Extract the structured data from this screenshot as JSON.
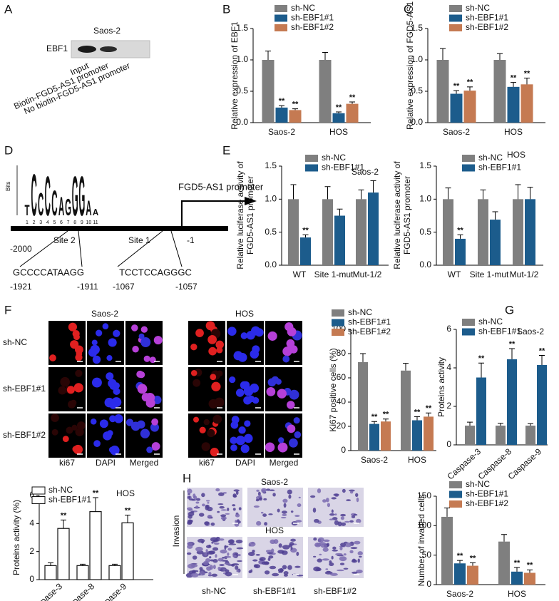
{
  "panel_labels": [
    "A",
    "B",
    "C",
    "D",
    "E",
    "F",
    "G",
    "H"
  ],
  "western_blot": {
    "cell_line": "Saos-2",
    "band_label": "EBF1",
    "lanes": [
      "Input",
      "Biotin-FGD5-AS1 promoter",
      "No biotin-FGD5-AS1 promoter"
    ]
  },
  "motif": {
    "axis_label": "Bits",
    "logo": [
      {
        "letter": "T",
        "bits": 0.5
      },
      {
        "letter": "C",
        "bits": 2.0
      },
      {
        "letter": "C",
        "bits": 1.1
      },
      {
        "letter": "C",
        "bits": 1.9
      },
      {
        "letter": "C",
        "bits": 1.2
      },
      {
        "letter": "A",
        "bits": 0.9
      },
      {
        "letter": "G",
        "bits": 0.8
      },
      {
        "letter": "G",
        "bits": 1.9
      },
      {
        "letter": "G",
        "bits": 1.9
      },
      {
        "letter": "A",
        "bits": 0.7
      },
      {
        "letter": "A",
        "bits": 0.3
      }
    ],
    "colors": {
      "A": "#2e9e3e",
      "C": "#1f5fae",
      "G": "#f2a20c",
      "T": "#d42a2a"
    },
    "positions": [
      1,
      2,
      3,
      4,
      5,
      6,
      7,
      8,
      9,
      10,
      11
    ]
  },
  "promoter_diagram": {
    "promoter_label": "FGD5-AS1 promoter",
    "site_2": "Site 2",
    "site_1": "Site 1",
    "start": "-2000",
    "end": "-1",
    "site2_seq": "GCCCCATAAGG",
    "site2_from": "-1921",
    "site2_to": "-1911",
    "site1_seq": "TCCTCCAGGGC",
    "site1_from": "-1067",
    "site1_to": "-1057"
  },
  "ki67_images": {
    "cell_lines": [
      "Saos-2",
      "HOS"
    ],
    "rows": [
      "sh-NC",
      "sh-EBF1#1",
      "sh-EBF1#2"
    ],
    "columns": [
      "ki67",
      "DAPI",
      "Merged"
    ]
  },
  "invasion_images": {
    "cell_lines": [
      "Saos-2",
      "HOS"
    ],
    "side_label": "Invasion",
    "columns": [
      "sh-NC",
      "sh-EBF1#1",
      "sh-EBF1#2"
    ]
  },
  "chart_data": [
    {
      "type": "bar",
      "ylabel": "Relative expression of EBF1",
      "categories": [
        "Saos-2",
        "HOS"
      ],
      "ylim": [
        0,
        1.5
      ],
      "yticks": [
        {
          "value": 0,
          "label": "0.0"
        },
        0.5,
        {
          "value": 1,
          "label": "1.0"
        },
        1.5
      ],
      "series": [
        {
          "name": "sh-NC",
          "color": "#7f7f7f",
          "values": [
            1.0,
            1.0
          ],
          "errors": [
            0.14,
            0.12
          ]
        },
        {
          "name": "sh-EBF1#1",
          "color": "#1c5c8c",
          "values": [
            0.24,
            0.15
          ],
          "errors": [
            0.03,
            0.02
          ],
          "significance": [
            "**",
            "**"
          ]
        },
        {
          "name": "sh-EBF1#2",
          "color": "#c57a52",
          "values": [
            0.2,
            0.3
          ],
          "errors": [
            0.02,
            0.03
          ],
          "significance": [
            "**",
            "**"
          ]
        }
      ]
    },
    {
      "type": "bar",
      "ylabel": "Relative expression of FGD5-AS1",
      "categories": [
        "Saos-2",
        "HOS"
      ],
      "ylim": [
        0,
        1.5
      ],
      "yticks": [
        {
          "value": 0,
          "label": "0.0"
        },
        0.5,
        {
          "value": 1,
          "label": "1.0"
        },
        1.5
      ],
      "series": [
        {
          "name": "sh-NC",
          "color": "#7f7f7f",
          "values": [
            1.0,
            1.0
          ],
          "errors": [
            0.18,
            0.1
          ]
        },
        {
          "name": "sh-EBF1#1",
          "color": "#1c5c8c",
          "values": [
            0.46,
            0.57
          ],
          "errors": [
            0.05,
            0.07
          ],
          "significance": [
            "**",
            "**"
          ]
        },
        {
          "name": "sh-EBF1#2",
          "color": "#c57a52",
          "values": [
            0.51,
            0.61
          ],
          "errors": [
            0.06,
            0.1
          ],
          "significance": [
            "**",
            "**"
          ]
        }
      ]
    },
    {
      "type": "bar",
      "ylabel": [
        "Relative luciferase activity of",
        "FGD5-AS1 promoter"
      ],
      "subtitle": "Saos-2",
      "categories": [
        "WT",
        "Site 1-mut",
        "Mut-1/2"
      ],
      "ylim": [
        0,
        1.5
      ],
      "yticks": [
        {
          "value": 0,
          "label": "0.0"
        },
        0.5,
        {
          "value": 1,
          "label": "1.0"
        },
        1.5
      ],
      "series": [
        {
          "name": "sh-NC",
          "color": "#7f7f7f",
          "values": [
            1.0,
            1.0,
            1.0
          ],
          "errors": [
            0.22,
            0.19,
            0.14
          ]
        },
        {
          "name": "sh-EBF1#1",
          "color": "#1c5c8c",
          "values": [
            0.42,
            0.75,
            1.1
          ],
          "errors": [
            0.04,
            0.1,
            0.18
          ],
          "significance": [
            "**",
            null,
            null
          ]
        }
      ]
    },
    {
      "type": "bar",
      "ylabel": [
        "Relative luciferase activity of",
        "FGD5-AS1 promoter"
      ],
      "subtitle": "HOS",
      "categories": [
        "WT",
        "Site 1-mut",
        "Mut-1/2"
      ],
      "ylim": [
        0,
        1.5
      ],
      "yticks": [
        {
          "value": 0,
          "label": "0.0"
        },
        0.5,
        {
          "value": 1,
          "label": "1.0"
        },
        1.5
      ],
      "series": [
        {
          "name": "sh-NC",
          "color": "#7f7f7f",
          "values": [
            1.0,
            1.0,
            1.0
          ],
          "errors": [
            0.17,
            0.14,
            0.22
          ]
        },
        {
          "name": "sh-EBF1#1",
          "color": "#1c5c8c",
          "values": [
            0.4,
            0.69,
            1.0
          ],
          "errors": [
            0.06,
            0.12,
            0.18
          ],
          "significance": [
            "**",
            null,
            null
          ]
        }
      ]
    },
    {
      "type": "bar",
      "ylabel": "Ki67 positive cells (%)",
      "categories": [
        "Saos-2",
        "HOS"
      ],
      "ylim": [
        0,
        100
      ],
      "yticks": [
        0,
        20,
        40,
        60,
        80,
        100
      ],
      "series": [
        {
          "name": "sh-NC",
          "color": "#7f7f7f",
          "values": [
            73,
            66
          ],
          "errors": [
            7,
            6
          ]
        },
        {
          "name": "sh-EBF1#1",
          "color": "#1c5c8c",
          "values": [
            22,
            25
          ],
          "errors": [
            2,
            3
          ],
          "significance": [
            "**",
            "**"
          ]
        },
        {
          "name": "sh-EBF1#2",
          "color": "#c57a52",
          "values": [
            24,
            28
          ],
          "errors": [
            2,
            3
          ],
          "significance": [
            "**",
            "**"
          ]
        }
      ]
    },
    {
      "type": "bar",
      "ylabel": "Proteins activity",
      "subtitle": "Saos-2",
      "categories": [
        "Caspase-3",
        "Caspase-8",
        "Caspase-9"
      ],
      "ylim": [
        0,
        6
      ],
      "yticks": [
        0,
        2,
        4,
        6
      ],
      "series": [
        {
          "name": "sh-NC",
          "color": "#7f7f7f",
          "values": [
            1.0,
            1.0,
            1.0
          ],
          "errors": [
            0.18,
            0.12,
            0.1
          ]
        },
        {
          "name": "sh-EBF1#1",
          "color": "#1c5c8c",
          "values": [
            3.5,
            4.45,
            4.15
          ],
          "errors": [
            0.75,
            0.55,
            0.5
          ],
          "significance": [
            "**",
            "**",
            "**"
          ]
        }
      ]
    },
    {
      "type": "bar",
      "ylabel": "Proteins activity (%)",
      "subtitle": "HOS",
      "categories": [
        "Caspase-3",
        "Caspase-8",
        "Caspase-9"
      ],
      "ylim": [
        0,
        6
      ],
      "yticks": [
        0,
        2,
        4,
        6
      ],
      "edgecolor": "#111111",
      "series": [
        {
          "name": "sh-NC",
          "color": "#ffffff",
          "values": [
            1.0,
            1.0,
            1.0
          ],
          "errors": [
            0.2,
            0.1,
            0.1
          ]
        },
        {
          "name": "sh-EBF1#1",
          "color": "#ffffff",
          "values": [
            3.65,
            4.85,
            4.05
          ],
          "errors": [
            0.6,
            1.0,
            0.55
          ],
          "significance": [
            "**",
            "**",
            "**"
          ]
        }
      ]
    },
    {
      "type": "bar",
      "ylabel": "Number of invaded cells",
      "categories": [
        "Saos-2",
        "HOS"
      ],
      "ylim": [
        0,
        150
      ],
      "yticks": [
        0,
        50,
        100,
        150
      ],
      "series": [
        {
          "name": "sh-NC",
          "color": "#7f7f7f",
          "values": [
            115,
            73
          ],
          "errors": [
            15,
            12
          ]
        },
        {
          "name": "sh-EBF1#1",
          "color": "#1c5c8c",
          "values": [
            36,
            22
          ],
          "errors": [
            5,
            7
          ],
          "significance": [
            "**",
            "**"
          ]
        },
        {
          "name": "sh-EBF1#2",
          "color": "#c57a52",
          "values": [
            32,
            20
          ],
          "errors": [
            5,
            5
          ],
          "significance": [
            "**",
            "**"
          ]
        }
      ]
    }
  ]
}
